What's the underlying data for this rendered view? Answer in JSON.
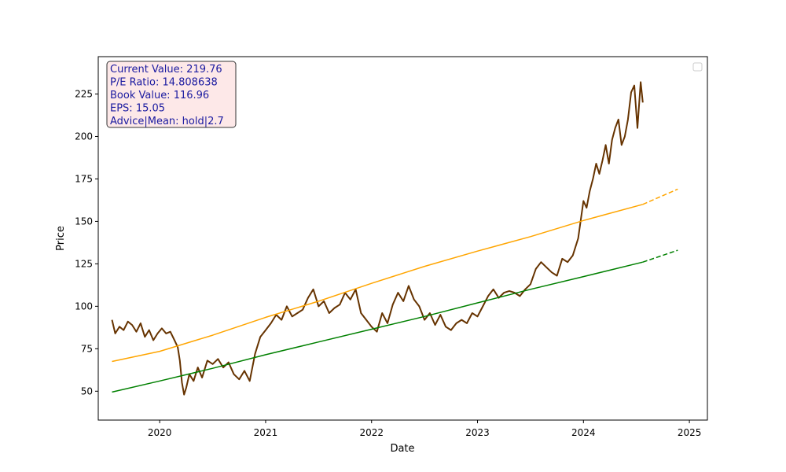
{
  "chart_data": {
    "type": "line",
    "title": "",
    "xlabel": "Date",
    "ylabel": "Price",
    "xlim": [
      2019.42,
      2025.17
    ],
    "ylim": [
      33,
      247
    ],
    "x_ticks": [
      {
        "value": 2020,
        "label": "2020"
      },
      {
        "value": 2021,
        "label": "2021"
      },
      {
        "value": 2022,
        "label": "2022"
      },
      {
        "value": 2023,
        "label": "2023"
      },
      {
        "value": 2024,
        "label": "2024"
      },
      {
        "value": 2025,
        "label": "2025"
      }
    ],
    "y_ticks": [
      {
        "value": 50,
        "label": "50"
      },
      {
        "value": 75,
        "label": "75"
      },
      {
        "value": 100,
        "label": "100"
      },
      {
        "value": 125,
        "label": "125"
      },
      {
        "value": 150,
        "label": "150"
      },
      {
        "value": 175,
        "label": "175"
      },
      {
        "value": 200,
        "label": "200"
      },
      {
        "value": 225,
        "label": "225"
      }
    ],
    "grid": false,
    "legend": {
      "position": "top-right",
      "entries": []
    },
    "info_box": {
      "position": "top-left",
      "lines": [
        "Current Value: 219.76",
        "P/E Ratio: 14.808638",
        "Book Value: 116.96",
        "EPS: 15.05",
        "Advice|Mean: hold|2.7"
      ]
    },
    "series": [
      {
        "name": "price",
        "color": "#663300",
        "style": "solid",
        "x": [
          2019.55,
          2019.58,
          2019.62,
          2019.66,
          2019.7,
          2019.74,
          2019.78,
          2019.82,
          2019.86,
          2019.9,
          2019.94,
          2019.98,
          2020.02,
          2020.06,
          2020.1,
          2020.14,
          2020.17,
          2020.19,
          2020.21,
          2020.23,
          2020.25,
          2020.28,
          2020.32,
          2020.36,
          2020.4,
          2020.45,
          2020.5,
          2020.55,
          2020.6,
          2020.65,
          2020.7,
          2020.75,
          2020.8,
          2020.85,
          2020.9,
          2020.95,
          2021.0,
          2021.05,
          2021.1,
          2021.15,
          2021.2,
          2021.25,
          2021.3,
          2021.35,
          2021.4,
          2021.45,
          2021.5,
          2021.55,
          2021.6,
          2021.65,
          2021.7,
          2021.75,
          2021.8,
          2021.85,
          2021.9,
          2021.95,
          2022.0,
          2022.05,
          2022.1,
          2022.15,
          2022.2,
          2022.25,
          2022.3,
          2022.35,
          2022.4,
          2022.45,
          2022.5,
          2022.55,
          2022.6,
          2022.65,
          2022.7,
          2022.75,
          2022.8,
          2022.85,
          2022.9,
          2022.95,
          2023.0,
          2023.05,
          2023.1,
          2023.15,
          2023.2,
          2023.25,
          2023.3,
          2023.35,
          2023.4,
          2023.45,
          2023.5,
          2023.55,
          2023.6,
          2023.65,
          2023.7,
          2023.75,
          2023.8,
          2023.85,
          2023.9,
          2023.95,
          2024.0,
          2024.03,
          2024.06,
          2024.09,
          2024.12,
          2024.15,
          2024.18,
          2024.21,
          2024.24,
          2024.27,
          2024.3,
          2024.33,
          2024.36,
          2024.39,
          2024.42,
          2024.45,
          2024.48,
          2024.51,
          2024.54,
          2024.56
        ],
        "values": [
          92,
          84,
          88,
          86,
          91,
          89,
          85,
          90,
          82,
          86,
          80,
          84,
          87,
          84,
          85,
          80,
          76,
          68,
          55,
          48,
          52,
          60,
          56,
          64,
          58,
          68,
          66,
          69,
          64,
          67,
          60,
          57,
          62,
          56,
          72,
          82,
          86,
          90,
          95,
          92,
          100,
          94,
          96,
          98,
          105,
          110,
          100,
          103,
          96,
          99,
          101,
          108,
          104,
          110,
          96,
          92,
          88,
          85,
          96,
          90,
          101,
          108,
          103,
          112,
          104,
          100,
          92,
          96,
          89,
          95,
          88,
          86,
          90,
          92,
          90,
          96,
          94,
          100,
          106,
          110,
          105,
          108,
          109,
          108,
          106,
          110,
          113,
          122,
          126,
          123,
          120,
          118,
          128,
          126,
          130,
          140,
          162,
          158,
          168,
          175,
          184,
          178,
          186,
          195,
          184,
          198,
          205,
          210,
          195,
          200,
          210,
          226,
          230,
          205,
          232,
          220
        ]
      },
      {
        "name": "trend-high",
        "color": "#ffa500",
        "style": "solid",
        "x": [
          2019.55,
          2020.0,
          2020.5,
          2021.0,
          2021.5,
          2022.0,
          2022.5,
          2023.0,
          2023.5,
          2024.0,
          2024.56
        ],
        "values": [
          67.5,
          73.5,
          83.0,
          93.5,
          103.0,
          113.5,
          123.5,
          132.5,
          141.0,
          150.5,
          160.0
        ]
      },
      {
        "name": "trend-high-forecast",
        "color": "#ffa500",
        "style": "dashed",
        "x": [
          2024.56,
          2024.89
        ],
        "values": [
          160.0,
          169.0
        ]
      },
      {
        "name": "trend-low",
        "color": "#008000",
        "style": "solid",
        "x": [
          2019.55,
          2020.0,
          2020.5,
          2021.0,
          2021.5,
          2022.0,
          2022.5,
          2023.0,
          2023.5,
          2024.0,
          2024.56
        ],
        "values": [
          49.5,
          56.0,
          63.5,
          71.5,
          79.0,
          86.5,
          94.0,
          102.0,
          110.0,
          117.5,
          126.0
        ]
      },
      {
        "name": "trend-low-forecast",
        "color": "#008000",
        "style": "dashed",
        "x": [
          2024.56,
          2024.89
        ],
        "values": [
          126.0,
          133.0
        ]
      }
    ]
  }
}
